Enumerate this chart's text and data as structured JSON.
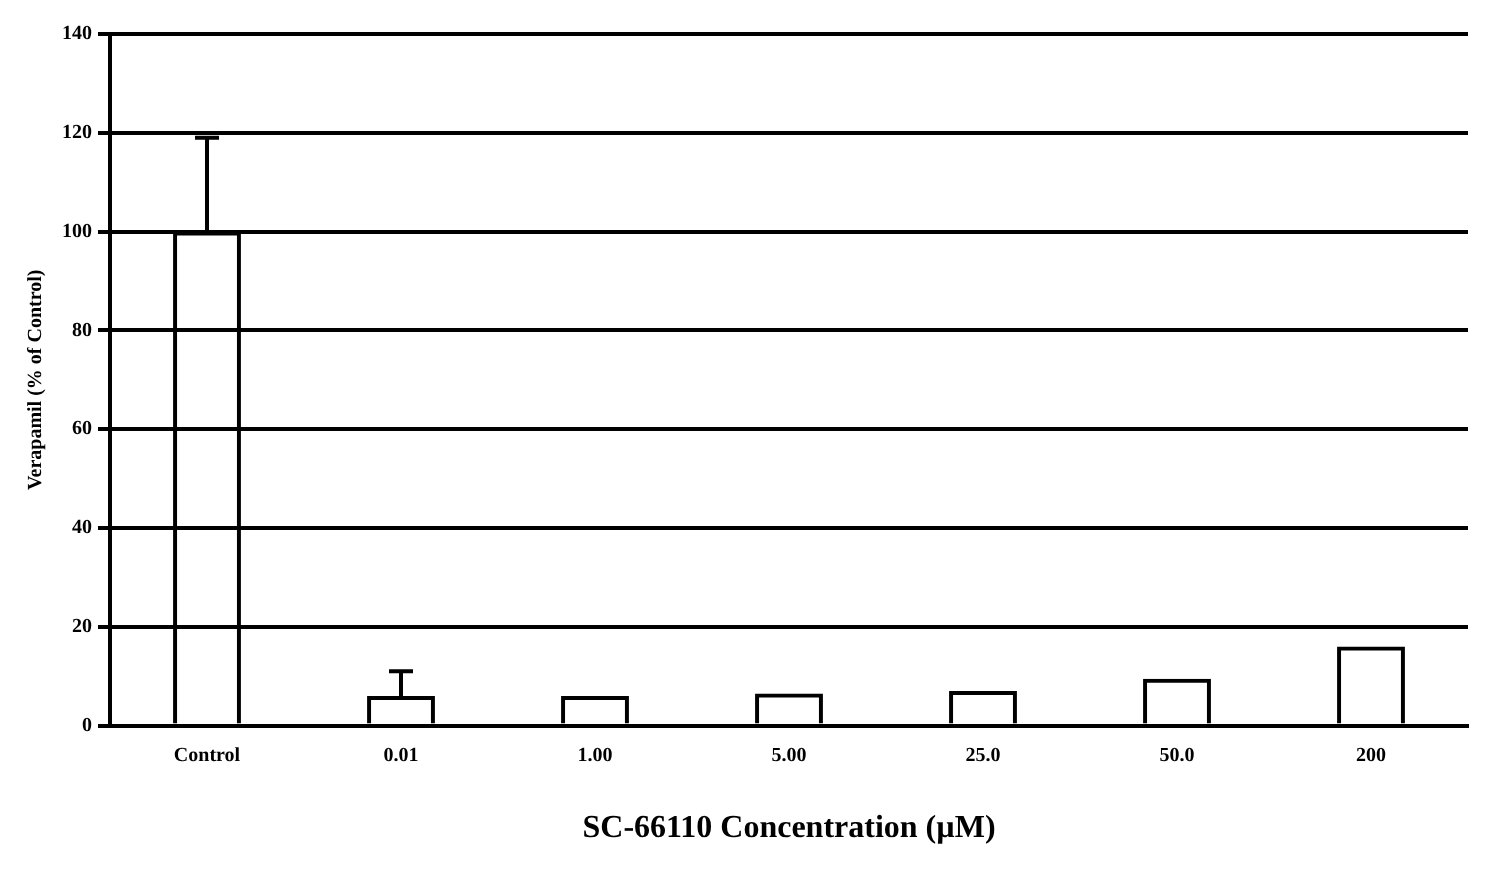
{
  "chart_data": {
    "type": "bar",
    "xlabel": "SC-66110 Concentration (µM)",
    "ylabel": "Verapamil (% of Control)",
    "categories": [
      "Control",
      "0.01",
      "1.00",
      "5.00",
      "25.0",
      "50.0",
      "200"
    ],
    "values": [
      100,
      6,
      6,
      6.5,
      7,
      9.5,
      16
    ],
    "errors": [
      [
        100,
        119
      ],
      [
        6,
        11
      ],
      null,
      null,
      null,
      null,
      null
    ],
    "color": "#000000",
    "ylim": [
      0,
      140
    ],
    "yticks": [
      0,
      20,
      40,
      60,
      80,
      100,
      120,
      140
    ],
    "grid": "y",
    "legend": false
  }
}
